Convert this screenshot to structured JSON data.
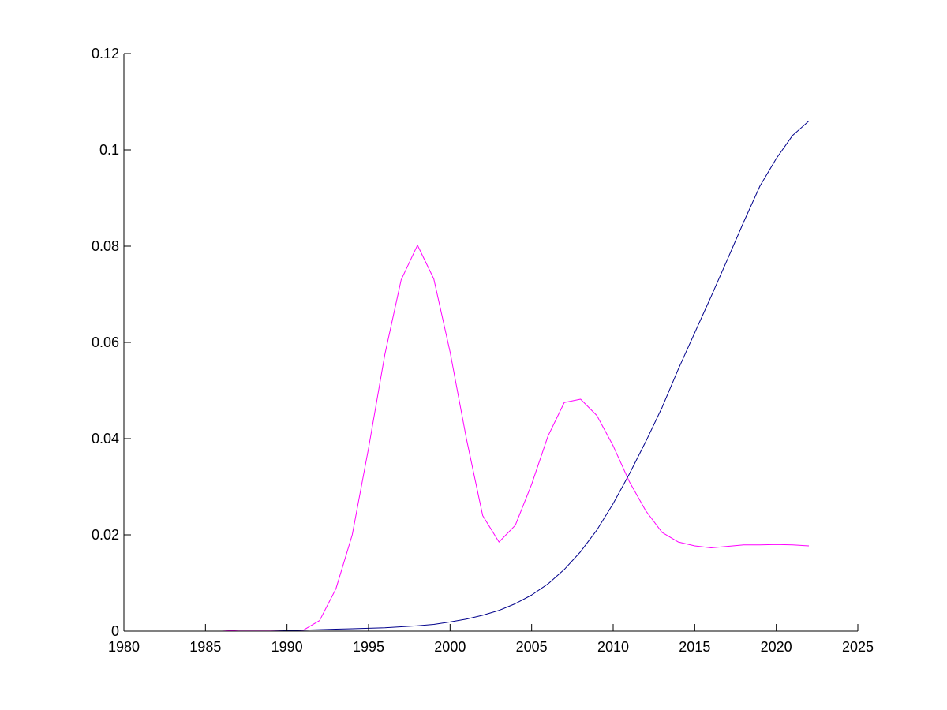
{
  "chart_data": {
    "type": "line",
    "title": "",
    "xlabel": "",
    "ylabel": "",
    "xlim": [
      1980,
      2025
    ],
    "ylim": [
      0,
      0.12
    ],
    "xticks": [
      1980,
      1985,
      1990,
      1995,
      2000,
      2005,
      2010,
      2015,
      2020,
      2025
    ],
    "yticks": [
      0,
      0.02,
      0.04,
      0.06,
      0.08,
      0.1,
      0.12
    ],
    "xtick_labels": [
      "1980",
      "1985",
      "1990",
      "1995",
      "2000",
      "2005",
      "2010",
      "2015",
      "2020",
      "2025"
    ],
    "ytick_labels": [
      "0",
      "0.02",
      "0.04",
      "0.06",
      "0.08",
      "0.1",
      "0.12"
    ],
    "grid": false,
    "legend": null,
    "series": [
      {
        "color": "#ff00ff",
        "x": [
          1980,
          1981,
          1982,
          1983,
          1984,
          1985,
          1986,
          1987,
          1988,
          1989,
          1990,
          1991,
          1992,
          1993,
          1994,
          1995,
          1996,
          1997,
          1998,
          1999,
          2000,
          2001,
          2002,
          2003,
          2004,
          2005,
          2006,
          2007,
          2008,
          2009,
          2010,
          2011,
          2012,
          2013,
          2014,
          2015,
          2016,
          2017,
          2018,
          2019,
          2020,
          2021,
          2022
        ],
        "y": [
          0,
          0,
          0,
          0,
          0,
          0,
          0,
          0.0002,
          0.0002,
          0.0002,
          0.0002,
          0.0002,
          0.0022,
          0.0088,
          0.02,
          0.038,
          0.0575,
          0.073,
          0.0802,
          0.0732,
          0.058,
          0.04,
          0.024,
          0.0185,
          0.022,
          0.0305,
          0.0405,
          0.0475,
          0.0482,
          0.0448,
          0.0385,
          0.031,
          0.025,
          0.0205,
          0.0185,
          0.0177,
          0.0173,
          0.0176,
          0.0179,
          0.0179,
          0.018,
          0.0179,
          0.0177
        ]
      },
      {
        "color": "#00008b",
        "x": [
          1980,
          1981,
          1982,
          1983,
          1984,
          1985,
          1986,
          1987,
          1988,
          1989,
          1990,
          1991,
          1992,
          1993,
          1994,
          1995,
          1996,
          1997,
          1998,
          1999,
          2000,
          2001,
          2002,
          2003,
          2004,
          2005,
          2006,
          2007,
          2008,
          2009,
          2010,
          2011,
          2012,
          2013,
          2014,
          2015,
          2016,
          2017,
          2018,
          2019,
          2020,
          2021,
          2022
        ],
        "y": [
          0,
          0,
          0,
          0,
          0,
          0,
          0,
          0,
          0,
          0,
          0.0001,
          0.0002,
          0.0003,
          0.0004,
          0.0005,
          0.0006,
          0.0007,
          0.0009,
          0.0011,
          0.0014,
          0.0019,
          0.0025,
          0.0033,
          0.0043,
          0.0057,
          0.0075,
          0.0098,
          0.0128,
          0.0165,
          0.021,
          0.0265,
          0.0327,
          0.0394,
          0.0465,
          0.0545,
          0.062,
          0.0695,
          0.0772,
          0.085,
          0.0925,
          0.0982,
          0.103,
          0.106
        ]
      }
    ]
  }
}
